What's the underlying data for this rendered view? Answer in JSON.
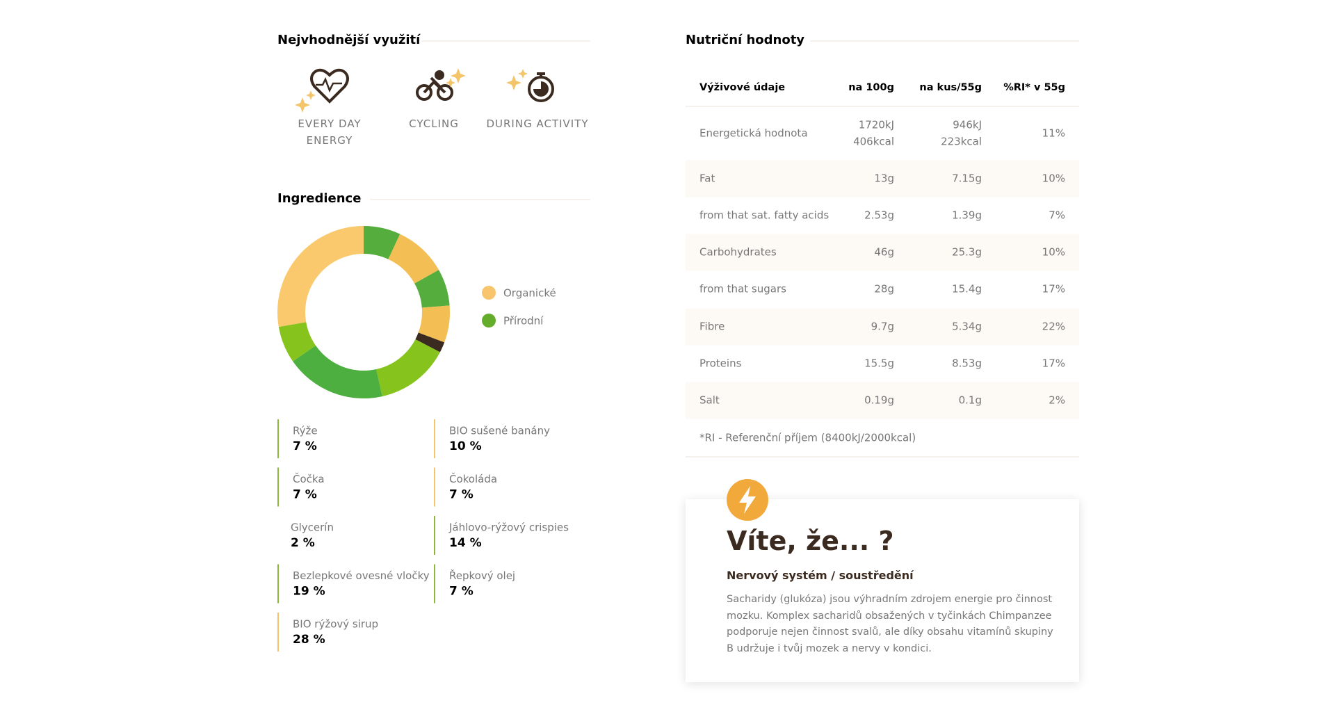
{
  "usage": {
    "title": "Nejvhodnější využití",
    "items": [
      "EVERY DAY ENERGY",
      "CYCLING",
      "DURING ACTIVITY"
    ]
  },
  "ingredients": {
    "title": "Ingredience",
    "legend": [
      {
        "name": "Organické",
        "color": "#f8c56c"
      },
      {
        "name": "Přírodní",
        "color": "#63ad2b"
      }
    ],
    "items": [
      {
        "name": "Rýže",
        "value": 7,
        "value_label": "7 %",
        "color": "#55ad3d",
        "accent": "#8fb83a"
      },
      {
        "name": "BIO sušené banány",
        "value": 10,
        "value_label": "10 %",
        "color": "#f3bf55",
        "accent": "#f3c46a"
      },
      {
        "name": "Čočka",
        "value": 7,
        "value_label": "7 %",
        "color": "#55ad3d",
        "accent": "#8fb83a"
      },
      {
        "name": "Čokoláda",
        "value": 7,
        "value_label": "7 %",
        "color": "#f3bf55",
        "accent": "#f3c46a"
      },
      {
        "name": "Glycerín",
        "value": 2,
        "value_label": "2 %",
        "color": "#3b2a1f"
      },
      {
        "name": "Jáhlovo-rýžový crispies",
        "value": 14,
        "value_label": "14 %",
        "color": "#86c31c",
        "accent": "#8fb83a"
      },
      {
        "name": "Bezlepkové ovesné vločky",
        "value": 19,
        "value_label": "19 %",
        "color": "#4caf3f",
        "accent": "#8fb83a"
      },
      {
        "name": "Řepkový olej",
        "value": 7,
        "value_label": "7 %",
        "color": "#86c31c",
        "accent": "#8fb83a"
      },
      {
        "name": "BIO rýžový sirup",
        "value": 28,
        "value_label": "28 %",
        "color": "#fac96e",
        "accent": "#f3c46a"
      }
    ]
  },
  "nutrition": {
    "title": "Nutriční hodnoty",
    "header": [
      "Výživové údaje",
      "na 100g",
      "na kus/55g",
      "%RI* v 55g"
    ],
    "rows": [
      [
        "Energetická hodnota",
        [
          "1720kJ",
          "406kcal"
        ],
        [
          "946kJ",
          "223kcal"
        ],
        "11%"
      ],
      [
        "Fat",
        "13g",
        "7.15g",
        "10%"
      ],
      [
        "from that sat. fatty acids",
        "2.53g",
        "1.39g",
        "7%"
      ],
      [
        "Carbohydrates",
        "46g",
        "25.3g",
        "10%"
      ],
      [
        "from that sugars",
        "28g",
        "15.4g",
        "17%"
      ],
      [
        "Fibre",
        "9.7g",
        "5.34g",
        "22%"
      ],
      [
        "Proteins",
        "15.5g",
        "8.53g",
        "17%"
      ],
      [
        "Salt",
        "0.19g",
        "0.1g",
        "2%"
      ]
    ],
    "footnote": "*RI - Referenční příjem (8400kJ/2000kcal)"
  },
  "fact": {
    "title": "Víte, že... ?",
    "subtitle": "Nervový systém / soustředění",
    "text": "Sacharidy (glukóza) jsou výhradním zdrojem energie pro činnost mozku. Komplex sacharidů obsažených v tyčinkách Chimpanzee podporuje nejen činnost svalů, ale díky obsahu vitamínů skupiny B udržuje i tvůj mozek a nervy v kondici."
  }
}
